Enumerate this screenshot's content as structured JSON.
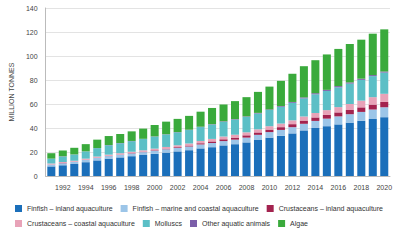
{
  "chart_data": {
    "type": "bar",
    "stacked": true,
    "grid": true,
    "legend": "bottom",
    "y_label": "MILLION TONNES",
    "categories": [
      null,
      "1992",
      null,
      "1994",
      null,
      "1996",
      null,
      "1998",
      null,
      "2000",
      null,
      "2002",
      null,
      "2004",
      null,
      "2006",
      null,
      "2008",
      null,
      "2010",
      null,
      "2012",
      null,
      "2014",
      null,
      "2016",
      null,
      "2018",
      null,
      "2020"
    ],
    "ylim": [
      0,
      140
    ],
    "yticks": [
      0,
      20,
      40,
      60,
      80,
      100,
      120,
      140
    ],
    "series": [
      {
        "name": "Finfish – inland aquaculture",
        "color": "#1b6fba",
        "values": [
          8,
          9,
          10,
          11.5,
          13,
          14.5,
          15.5,
          16.5,
          17.5,
          18.5,
          19.5,
          20.5,
          21.5,
          23,
          24,
          25.5,
          26.5,
          28,
          30,
          32,
          33.5,
          35.5,
          38,
          40,
          41.5,
          43,
          44.5,
          46,
          47.5,
          49
        ]
      },
      {
        "name": "Finfish – marine and coastal aquaculture",
        "color": "#9cc5e8",
        "values": [
          1.5,
          1.7,
          1.8,
          1.9,
          2.0,
          2.1,
          2.2,
          2.3,
          2.4,
          2.6,
          2.8,
          3.0,
          3.1,
          3.3,
          3.5,
          3.6,
          3.8,
          4.0,
          4.3,
          4.6,
          4.9,
          5.2,
          5.5,
          5.9,
          6.3,
          6.7,
          7.0,
          7.4,
          7.9,
          8.3
        ]
      },
      {
        "name": "Crustaceans – inland aquaculture",
        "color": "#a3234f",
        "values": [
          0.1,
          0.1,
          0.1,
          0.15,
          0.2,
          0.2,
          0.2,
          0.3,
          0.3,
          0.4,
          0.5,
          0.6,
          0.8,
          1.0,
          1.3,
          1.5,
          1.7,
          1.9,
          2.0,
          2.1,
          2.3,
          2.5,
          2.7,
          2.9,
          3.1,
          3.3,
          3.5,
          3.8,
          4.1,
          4.4
        ]
      },
      {
        "name": "Crustaceans – coastal aquaculture",
        "color": "#e8a3b8",
        "values": [
          0.8,
          0.9,
          0.8,
          0.9,
          1.0,
          1.0,
          1.1,
          1.1,
          1.2,
          1.3,
          1.4,
          1.5,
          1.7,
          1.9,
          2.1,
          2.3,
          2.4,
          2.5,
          2.6,
          2.8,
          3.0,
          3.2,
          3.4,
          3.7,
          4.0,
          4.4,
          5.0,
          5.6,
          6.2,
          6.8
        ]
      },
      {
        "name": "Molluscs",
        "color": "#5bbfc6",
        "values": [
          4.0,
          4.6,
          5.2,
          6.0,
          7.0,
          7.8,
          8.3,
          8.8,
          9.4,
          10.0,
          10.4,
          10.8,
          11.2,
          11.6,
          12.0,
          12.3,
          12.6,
          12.9,
          13.2,
          13.5,
          14.0,
          14.6,
          15.1,
          15.6,
          16.0,
          16.5,
          17.0,
          17.3,
          17.5,
          17.7
        ]
      },
      {
        "name": "Other aquatic animals",
        "color": "#7b5ea9",
        "values": [
          0.1,
          0.1,
          0.1,
          0.1,
          0.1,
          0.2,
          0.2,
          0.2,
          0.2,
          0.2,
          0.2,
          0.2,
          0.3,
          0.3,
          0.3,
          0.4,
          0.4,
          0.4,
          0.5,
          0.5,
          0.6,
          0.7,
          0.8,
          0.9,
          0.9,
          1.0,
          1.0,
          1.0,
          0.9,
          0.9
        ]
      },
      {
        "name": "Algae",
        "color": "#3aaa3c",
        "values": [
          4.5,
          4.8,
          5.5,
          6.0,
          7.0,
          7.5,
          7.5,
          8.0,
          8.5,
          9.5,
          10.5,
          11.0,
          11.5,
          12.5,
          13.5,
          14.0,
          15.0,
          16.0,
          17.5,
          19.0,
          21.0,
          23.5,
          26.0,
          27.5,
          29.5,
          31.0,
          32.0,
          32.5,
          34.5,
          35.1
        ]
      }
    ]
  }
}
